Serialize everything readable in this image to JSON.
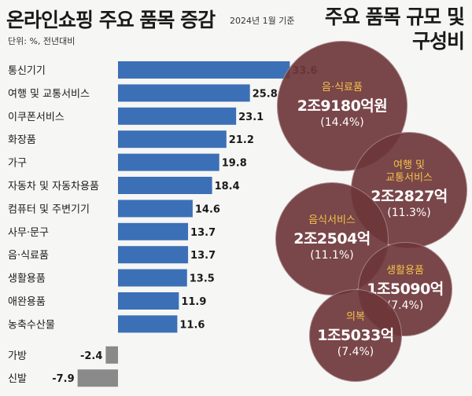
{
  "header": {
    "title": "온라인쇼핑 주요 품목 증감",
    "date": "2024년 1월 기준",
    "unit": "단위: %, 전년대비"
  },
  "side_panel": {
    "title_line1": "주요 품목 규모 및",
    "title_line2": "구성비",
    "items": [
      {
        "name": "음·식료품",
        "value": "2조9180억원",
        "pct": "(14.4%)"
      },
      {
        "name_line1": "여행 및",
        "name_line2": "교통서비스",
        "value": "2조2827억",
        "pct": "(11.3%)"
      },
      {
        "name": "음식서비스",
        "value": "2조2504억",
        "pct": "(11.1%)"
      },
      {
        "name": "생활용품",
        "value": "1조5090억",
        "pct": "(7.4%)"
      },
      {
        "name": "의복",
        "value": "1조5033억",
        "pct": "(7.4%)"
      }
    ]
  },
  "colors": {
    "positive_bar": "#3b70b6",
    "negative_bar": "#8a8a8a",
    "bubble": "#6e363a",
    "bubble_label": "#f4c24a"
  },
  "chart_data": {
    "type": "bar",
    "orientation": "horizontal",
    "title": "온라인쇼핑 주요 품목 증감",
    "unit": "단위: %, 전년대비",
    "categories": [
      "통신기기",
      "여행 및 교통서비스",
      "이쿠폰서비스",
      "화장품",
      "가구",
      "자동차 및 자동차용품",
      "컴퓨터 및 주변기기",
      "사무·문구",
      "음·식료품",
      "생활용품",
      "애완용품",
      "농축수산물",
      "가방",
      "신발"
    ],
    "values": [
      33.6,
      25.8,
      23.1,
      21.2,
      19.8,
      18.4,
      14.6,
      13.7,
      13.7,
      13.5,
      11.9,
      11.6,
      -2.4,
      -7.9
    ],
    "value_labels": [
      "33.6",
      "25.8",
      "23.1",
      "21.2",
      "19.8",
      "18.4",
      "14.6",
      "13.7",
      "13.7",
      "13.5",
      "11.9",
      "11.6",
      "-2.4",
      "-7.9"
    ]
  }
}
